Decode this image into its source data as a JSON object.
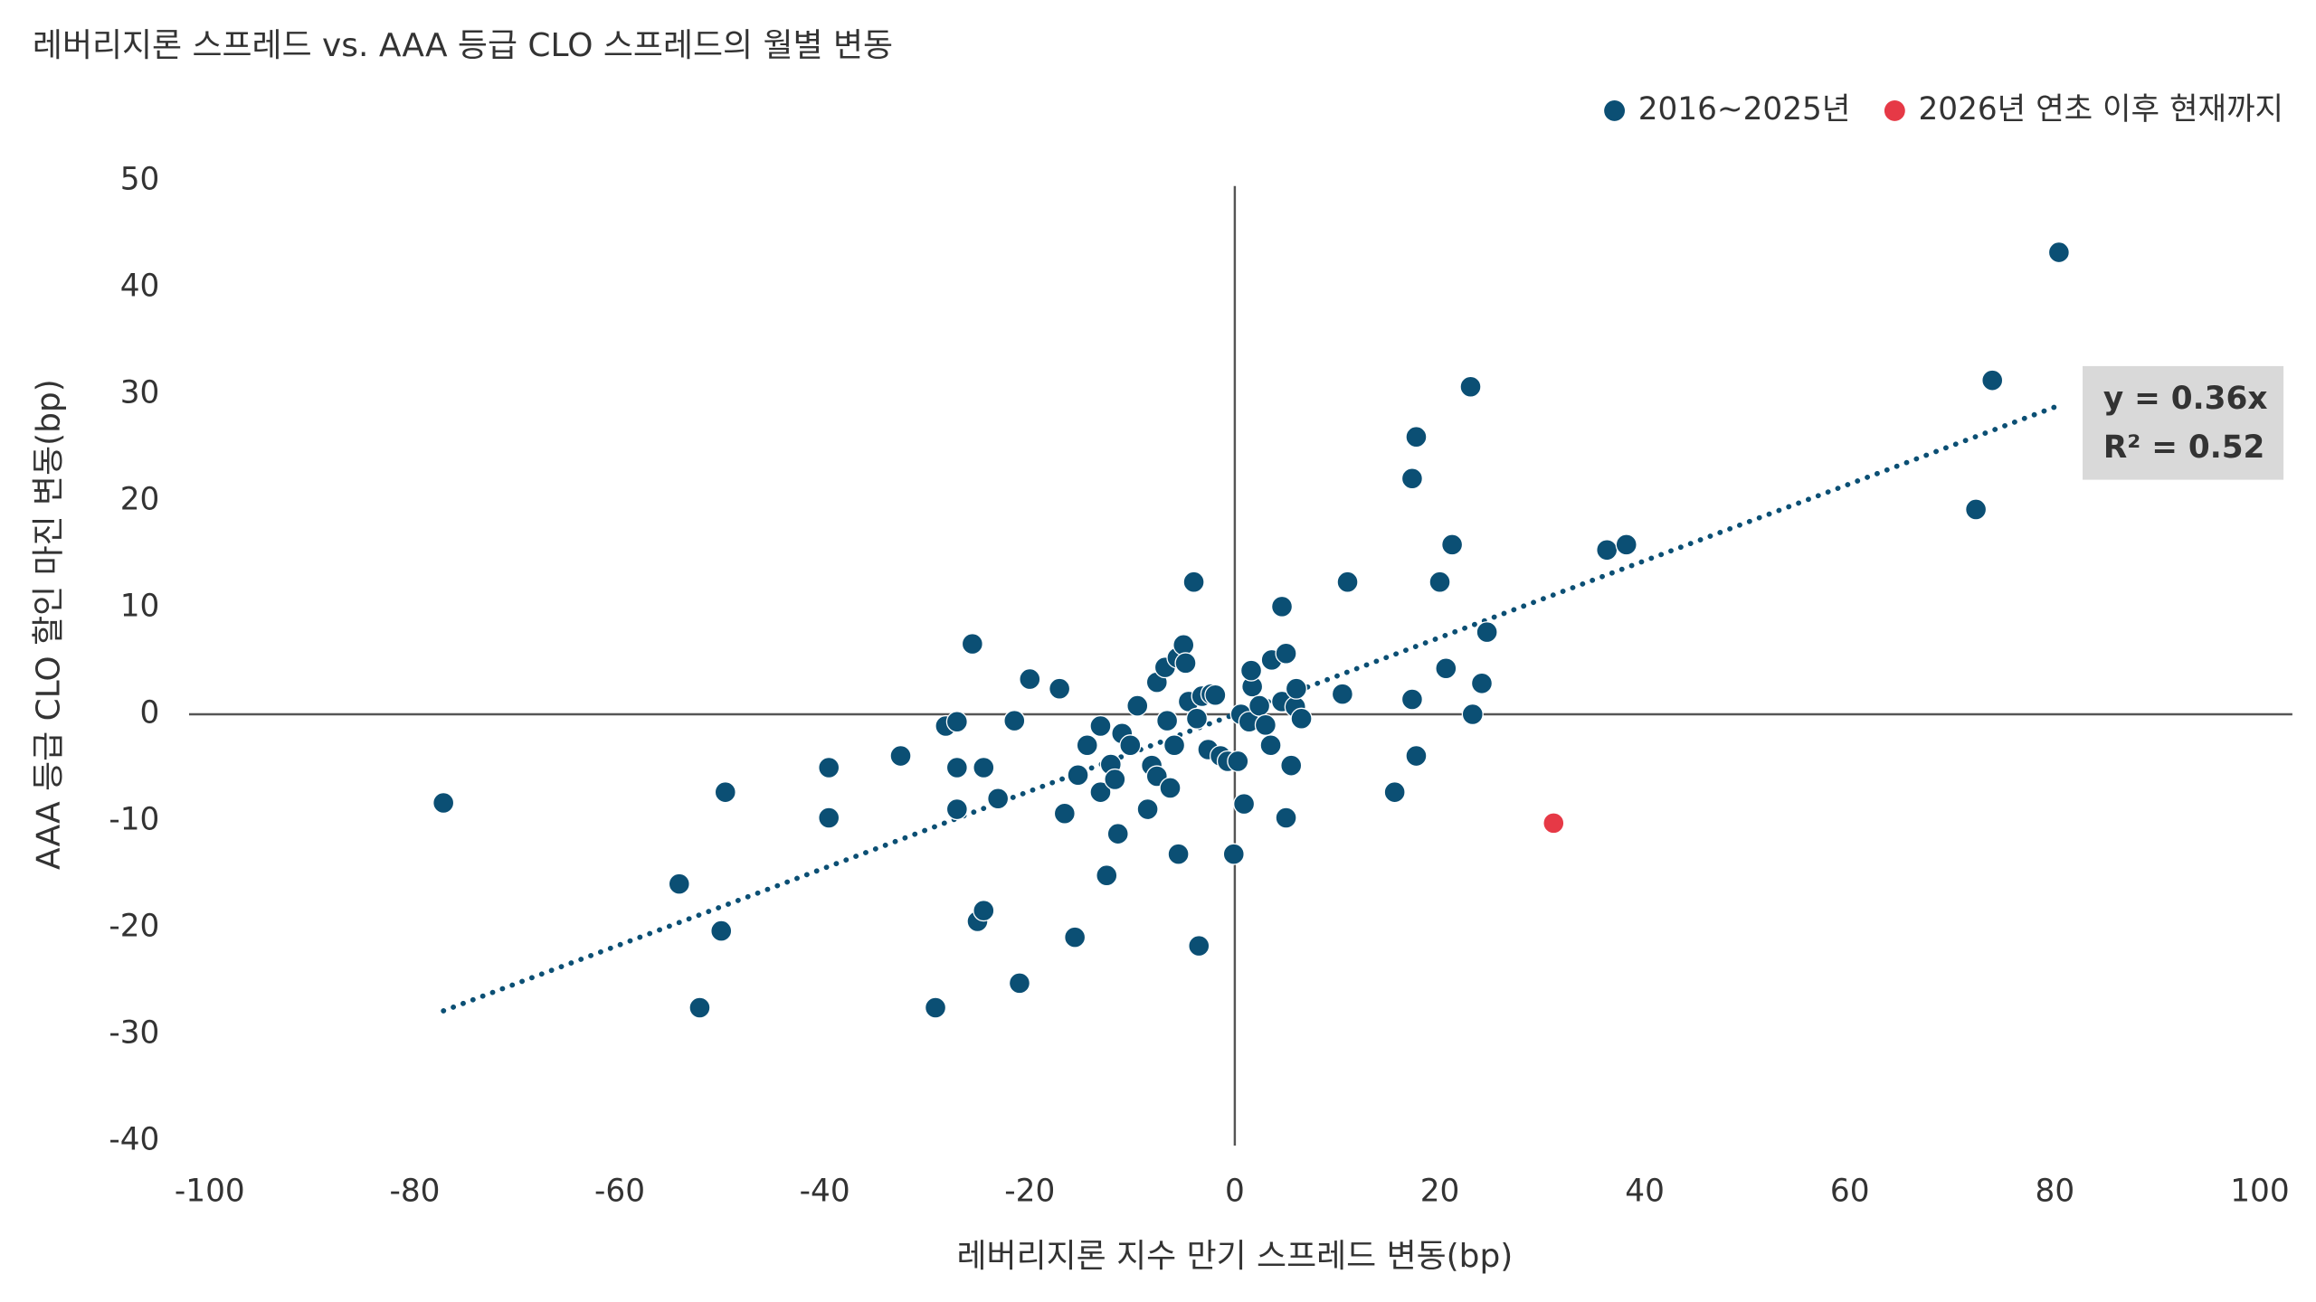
{
  "chart_data": {
    "type": "scatter",
    "title": "레버리지론 스프레드 vs. AAA 등급 CLO 스프레드의 월별 변동",
    "x_label": "레버리지론 지수 만기 스프레드 변동(bp)",
    "y_label": "AAA 등급 CLO 할인 마진 변동(bp)",
    "xlim": [
      -100,
      100
    ],
    "xticks": [
      -100,
      -80,
      -60,
      -40,
      -20,
      0,
      20,
      40,
      60,
      80,
      100
    ],
    "ylim": [
      -40,
      50
    ],
    "yticks": [
      -40,
      -30,
      -20,
      -10,
      0,
      10,
      20,
      30,
      40,
      50
    ],
    "legend": "top-right",
    "trendline": {
      "slope": 0.36,
      "color": "#0b4f74"
    },
    "annotations": [
      "y = 0.36x",
      "R² = 0.52"
    ],
    "series": [
      {
        "name": "2016~2025년",
        "color": "#0b4f74",
        "x": [
          -77.2,
          -54.2,
          -52.2,
          -50.1,
          -49.7,
          -39.6,
          -39.6,
          -32.6,
          -29.2,
          -28.2,
          -27.1,
          -27.1,
          -27.1,
          -25.6,
          -25.1,
          -24.5,
          -24.5,
          -23.1,
          -21.5,
          -21,
          -20,
          -17.1,
          -16.6,
          -15.6,
          -15.3,
          -14.4,
          -13.1,
          -13.1,
          -12.5,
          -12.1,
          -11.7,
          -11.4,
          -11,
          -10.2,
          -9.5,
          -8.5,
          -8.1,
          -7.6,
          -7.6,
          -6.8,
          -6.6,
          -6.3,
          -5.9,
          -5.6,
          -5.5,
          -5.0,
          -4.8,
          -4.5,
          -4.0,
          -3.7,
          -3.5,
          -3.2,
          -2.6,
          -2.3,
          -1.9,
          -1.4,
          -0.7,
          -0.1,
          0.3,
          0.6,
          0.9,
          1.4,
          1.7,
          1.6,
          2.4,
          3,
          3.5,
          3.6,
          4.6,
          4.6,
          5,
          5,
          5.5,
          5.9,
          6,
          6.5,
          10.5,
          11,
          15.6,
          17.3,
          17.3,
          17.7,
          17.7,
          20,
          20.6,
          21.2,
          23,
          23.2,
          24.1,
          24.6,
          36.3,
          38.2,
          72.3,
          73.9,
          80.4
        ],
        "values": [
          -8.3,
          -15.9,
          -27.5,
          -20.3,
          -7.3,
          -5,
          -9.7,
          -3.9,
          -27.5,
          -1.1,
          -0.7,
          -5,
          -8.9,
          6.6,
          -19.4,
          -18.4,
          -5,
          -7.9,
          -0.6,
          -25.2,
          3.3,
          2.4,
          -9.3,
          -20.9,
          -5.7,
          -2.9,
          -1.1,
          -7.3,
          -15.1,
          -4.7,
          -6.1,
          -11.2,
          -1.8,
          -2.9,
          0.8,
          -8.9,
          -4.8,
          3,
          -5.8,
          4.4,
          -0.6,
          -6.9,
          -2.9,
          5.3,
          -13.1,
          6.5,
          4.8,
          1.2,
          12.4,
          -0.4,
          -21.7,
          1.7,
          -3.3,
          1.9,
          1.8,
          -3.9,
          -4.4,
          -13.1,
          -4.4,
          0,
          -8.4,
          -0.7,
          2.6,
          4.1,
          0.8,
          -1,
          -2.9,
          5.1,
          10.1,
          1.2,
          5.7,
          -9.7,
          -4.8,
          0.7,
          2.4,
          -0.4,
          1.9,
          12.4,
          -7.3,
          22.1,
          1.4,
          -3.9,
          26,
          12.4,
          4.3,
          15.9,
          30.7,
          0,
          2.9,
          7.7,
          15.4,
          15.9,
          19.2,
          31.3,
          43.3
        ]
      },
      {
        "name": "2026년 연초 이후 현재까지",
        "color": "#e63946",
        "x": [
          31.1
        ],
        "values": [
          -10.2
        ]
      }
    ]
  }
}
